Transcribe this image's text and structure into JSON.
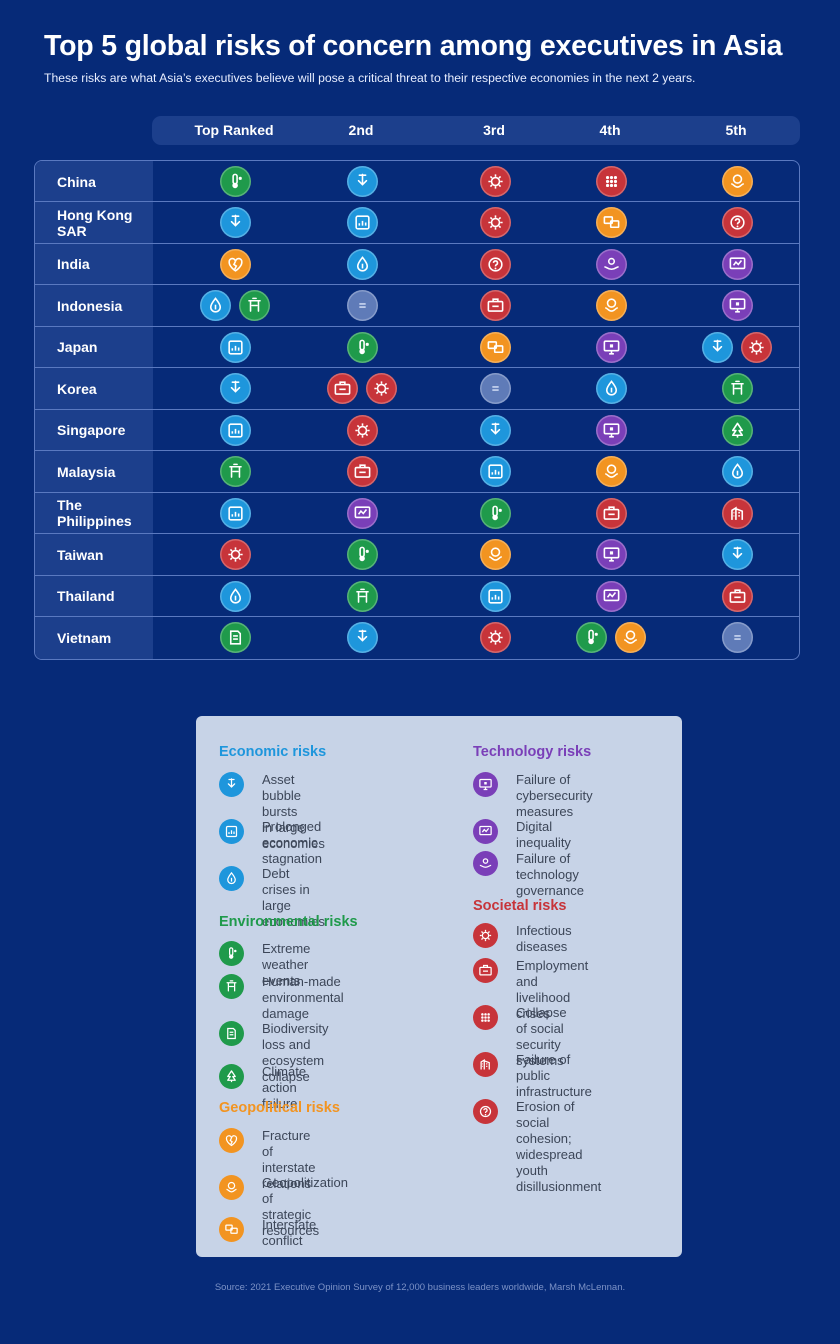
{
  "title": "Top 5 global risks of concern among executives in Asia",
  "subtitle": "These risks are what Asia’s executives believe will pose a critical threat to their respective economies in the next 2 years.",
  "colors": {
    "economic": "#1e96dc",
    "environmental": "#1f9a4b",
    "geopolitical": "#f29421",
    "technology": "#7a3fb8",
    "societal": "#c7343a",
    "equal": "#5f7bb8"
  },
  "chart_data": {
    "type": "table",
    "columns": [
      "Top Ranked",
      "2nd",
      "3rd",
      "4th",
      "5th"
    ],
    "rows": [
      {
        "country": "China",
        "ranks": [
          [
            "extreme-weather"
          ],
          [
            "asset-bubble"
          ],
          [
            "infectious-diseases"
          ],
          [
            "social-security"
          ],
          [
            "geopolitization"
          ]
        ]
      },
      {
        "country": "Hong Kong SAR",
        "ranks": [
          [
            "asset-bubble"
          ],
          [
            "stagnation"
          ],
          [
            "infectious-diseases"
          ],
          [
            "interstate-conflict"
          ],
          [
            "social-cohesion"
          ]
        ]
      },
      {
        "country": "India",
        "ranks": [
          [
            "fracture-interstate"
          ],
          [
            "debt-crises"
          ],
          [
            "social-cohesion"
          ],
          [
            "tech-governance"
          ],
          [
            "digital-inequality"
          ]
        ]
      },
      {
        "country": "Indonesia",
        "ranks": [
          [
            "debt-crises",
            "human-damage"
          ],
          [
            "equal"
          ],
          [
            "employment"
          ],
          [
            "geopolitization"
          ],
          [
            "cybersecurity"
          ]
        ]
      },
      {
        "country": "Japan",
        "ranks": [
          [
            "stagnation"
          ],
          [
            "extreme-weather"
          ],
          [
            "interstate-conflict"
          ],
          [
            "cybersecurity"
          ],
          [
            "asset-bubble",
            "infectious-diseases"
          ]
        ]
      },
      {
        "country": "Korea",
        "ranks": [
          [
            "asset-bubble"
          ],
          [
            "employment",
            "infectious-diseases"
          ],
          [
            "equal"
          ],
          [
            "debt-crises"
          ],
          [
            "human-damage"
          ]
        ]
      },
      {
        "country": "Singapore",
        "ranks": [
          [
            "stagnation"
          ],
          [
            "infectious-diseases"
          ],
          [
            "asset-bubble"
          ],
          [
            "cybersecurity"
          ],
          [
            "climate-action"
          ]
        ]
      },
      {
        "country": "Malaysia",
        "ranks": [
          [
            "human-damage"
          ],
          [
            "employment"
          ],
          [
            "stagnation"
          ],
          [
            "geopolitization"
          ],
          [
            "debt-crises"
          ]
        ]
      },
      {
        "country": "The Philippines",
        "ranks": [
          [
            "stagnation"
          ],
          [
            "digital-inequality"
          ],
          [
            "extreme-weather"
          ],
          [
            "employment"
          ],
          [
            "public-infrastructure"
          ]
        ]
      },
      {
        "country": "Taiwan",
        "ranks": [
          [
            "infectious-diseases"
          ],
          [
            "extreme-weather"
          ],
          [
            "geopolitization"
          ],
          [
            "cybersecurity"
          ],
          [
            "asset-bubble"
          ]
        ]
      },
      {
        "country": "Thailand",
        "ranks": [
          [
            "debt-crises"
          ],
          [
            "human-damage"
          ],
          [
            "stagnation"
          ],
          [
            "digital-inequality"
          ],
          [
            "employment"
          ]
        ]
      },
      {
        "country": "Vietnam",
        "ranks": [
          [
            "biodiversity"
          ],
          [
            "asset-bubble"
          ],
          [
            "infectious-diseases"
          ],
          [
            "extreme-weather",
            "geopolitization"
          ],
          [
            "equal"
          ]
        ]
      }
    ]
  },
  "legend": {
    "economic": {
      "title": "Economic risks",
      "items": [
        {
          "icon": "asset-bubble",
          "text": "Asset bubble bursts\nin large economies"
        },
        {
          "icon": "stagnation",
          "text": "Prolonged\neconomic stagnation"
        },
        {
          "icon": "debt-crises",
          "text": "Debt crises in\nlarge economies"
        }
      ]
    },
    "environmental": {
      "title": "Environmental risks",
      "items": [
        {
          "icon": "extreme-weather",
          "text": "Extreme weather events"
        },
        {
          "icon": "human-damage",
          "text": "Human-made\nenvironmental damage"
        },
        {
          "icon": "biodiversity",
          "text": "Biodiversity loss and\necosystem collapse"
        },
        {
          "icon": "climate-action",
          "text": "Climate action failure"
        }
      ]
    },
    "geopolitical": {
      "title": "Geopolitical risks",
      "items": [
        {
          "icon": "fracture-interstate",
          "text": "Fracture of\ninterstate relations"
        },
        {
          "icon": "geopolitization",
          "text": "Geopolitization of\nstrategic resources"
        },
        {
          "icon": "interstate-conflict",
          "text": "Interstate conflict"
        }
      ]
    },
    "technology": {
      "title": "Technology risks",
      "items": [
        {
          "icon": "cybersecurity",
          "text": "Failure of\ncybersecurity measures"
        },
        {
          "icon": "digital-inequality",
          "text": "Digital inequality"
        },
        {
          "icon": "tech-governance",
          "text": "Failure of\ntechnology governance"
        }
      ]
    },
    "societal": {
      "title": "Societal risks",
      "items": [
        {
          "icon": "infectious-diseases",
          "text": "Infectious diseases"
        },
        {
          "icon": "employment",
          "text": "Employment and\nlivelihood crises"
        },
        {
          "icon": "social-security",
          "text": "Collapse of social\nsecurity systems"
        },
        {
          "icon": "public-infrastructure",
          "text": "Failure of\npublic infrastructure"
        },
        {
          "icon": "social-cohesion",
          "text": "Erosion of social\ncohesion; widespread\nyouth disillusionment"
        }
      ]
    }
  },
  "source": "Source: 2021 Executive Opinion Survey of 12,000 business leaders worldwide, Marsh McLennan."
}
